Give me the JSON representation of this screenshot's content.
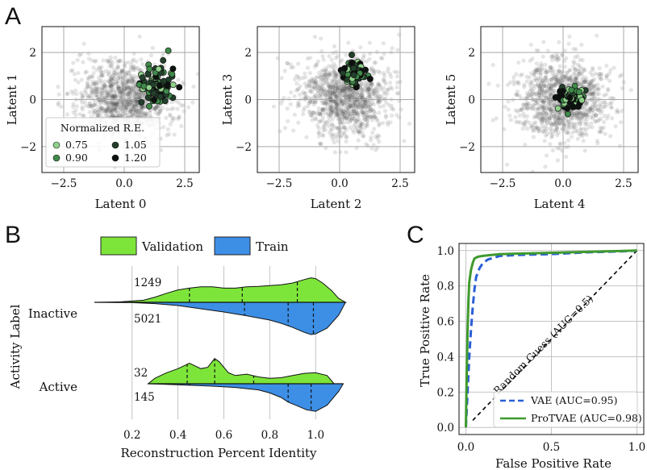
{
  "panels": {
    "a": "A",
    "b": "B",
    "c": "C"
  },
  "chart_data": [
    {
      "type": "scatter",
      "panel": "A",
      "plots": [
        {
          "xlabel": "Latent 0",
          "ylabel": "Latent 1"
        },
        {
          "xlabel": "Latent 2",
          "ylabel": "Latent 3"
        },
        {
          "xlabel": "Latent 4",
          "ylabel": "Latent 5"
        }
      ],
      "xlim": [
        -3.4,
        3.1
      ],
      "ylim": [
        -3.1,
        3.1
      ],
      "xticks": [
        -2.5,
        0.0,
        2.5
      ],
      "xtick_labels": [
        "−2.5",
        "0.0",
        "2.5"
      ],
      "yticks": [
        -2,
        0,
        2
      ],
      "ytick_labels": [
        "−2",
        "0",
        "2"
      ],
      "legend": {
        "title": "Normalized R.E.",
        "placement": "lower-left of first plot",
        "entries": [
          {
            "label": "0.75",
            "color": "#8fd18a"
          },
          {
            "label": "0.90",
            "color": "#3f8a4a"
          },
          {
            "label": "1.05",
            "color": "#23402c"
          },
          {
            "label": "1.20",
            "color": "#0d120f"
          }
        ]
      },
      "background_color": "#444444",
      "highlight_clusters": [
        {
          "plot": 0,
          "center": [
            1.3,
            0.6
          ],
          "spread": [
            0.55,
            0.65
          ]
        },
        {
          "plot": 1,
          "center": [
            0.6,
            1.1
          ],
          "spread": [
            0.4,
            0.45
          ]
        },
        {
          "plot": 2,
          "center": [
            0.3,
            0.05
          ],
          "spread": [
            0.45,
            0.35
          ]
        }
      ]
    },
    {
      "type": "violin",
      "panel": "B",
      "xlabel": "Reconstruction Percent Identity",
      "ylabel": "Activity Label",
      "xlim": [
        0.05,
        1.15
      ],
      "xticks": [
        0.2,
        0.4,
        0.6,
        0.8,
        1.0
      ],
      "xtick_labels": [
        "0.2",
        "0.4",
        "0.6",
        "0.8",
        "1.0"
      ],
      "categories": [
        "Inactive",
        "Active"
      ],
      "legend": [
        {
          "label": "Validation",
          "color": "#7de53a"
        },
        {
          "label": "Train",
          "color": "#3d8fe6"
        }
      ],
      "series": [
        {
          "name": "Validation",
          "counts": {
            "Inactive": "1249",
            "Active": "32"
          },
          "quartiles": {
            "Inactive": [
              0.45,
              0.68,
              0.92
            ],
            "Active": [
              0.44,
              0.56,
              0.73
            ]
          },
          "density": {
            "Inactive": {
              "x": [
                0.05,
                0.15,
                0.25,
                0.3,
                0.35,
                0.4,
                0.45,
                0.5,
                0.55,
                0.6,
                0.65,
                0.7,
                0.75,
                0.8,
                0.85,
                0.9,
                0.95,
                0.98,
                1.0,
                1.03,
                1.07,
                1.1,
                1.13
              ],
              "y": [
                0.0,
                0.02,
                0.08,
                0.2,
                0.35,
                0.48,
                0.55,
                0.6,
                0.6,
                0.55,
                0.55,
                0.6,
                0.62,
                0.65,
                0.68,
                0.75,
                0.88,
                0.95,
                0.92,
                0.75,
                0.45,
                0.15,
                0.0
              ]
            },
            "Active": {
              "x": [
                0.27,
                0.3,
                0.35,
                0.4,
                0.45,
                0.5,
                0.53,
                0.56,
                0.58,
                0.62,
                0.65,
                0.7,
                0.75,
                0.8,
                0.85,
                0.9,
                0.95,
                1.0,
                1.05,
                1.08
              ],
              "y": [
                0.0,
                0.2,
                0.4,
                0.55,
                0.75,
                0.55,
                0.6,
                0.92,
                0.8,
                0.4,
                0.3,
                0.35,
                0.25,
                0.2,
                0.22,
                0.3,
                0.38,
                0.4,
                0.3,
                0.0
              ]
            }
          }
        },
        {
          "name": "Train",
          "counts": {
            "Inactive": "5021",
            "Active": "145"
          },
          "quartiles": {
            "Inactive": [
              0.69,
              0.88,
              0.99
            ],
            "Active": [
              0.45,
              0.88,
              0.98
            ]
          },
          "density": {
            "Inactive": {
              "x": [
                0.05,
                0.2,
                0.3,
                0.4,
                0.5,
                0.6,
                0.7,
                0.8,
                0.85,
                0.9,
                0.95,
                0.98,
                1.0,
                1.05,
                1.1,
                1.13
              ],
              "y": [
                0.0,
                0.01,
                0.04,
                0.1,
                0.2,
                0.3,
                0.42,
                0.55,
                0.65,
                0.78,
                0.93,
                1.0,
                0.98,
                0.8,
                0.4,
                0.0
              ]
            },
            "Active": {
              "x": [
                0.27,
                0.35,
                0.45,
                0.55,
                0.65,
                0.75,
                0.8,
                0.85,
                0.88,
                0.92,
                0.96,
                1.0,
                1.05,
                1.1,
                1.12
              ],
              "y": [
                0.0,
                0.02,
                0.05,
                0.08,
                0.12,
                0.2,
                0.3,
                0.45,
                0.6,
                0.72,
                0.85,
                0.9,
                0.7,
                0.25,
                0.0
              ]
            }
          }
        }
      ]
    },
    {
      "type": "line",
      "panel": "C",
      "xlabel": "False Positive Rate",
      "ylabel": "True Positive Rate",
      "xlim": [
        -0.04,
        1.04
      ],
      "ylim": [
        -0.04,
        1.04
      ],
      "xticks": [
        0.0,
        0.5,
        1.0
      ],
      "xtick_labels": [
        "0.0",
        "0.5",
        "1.0"
      ],
      "yticks": [
        0.0,
        0.2,
        0.4,
        0.6,
        0.8,
        1.0
      ],
      "ytick_labels": [
        "0.0",
        "0.2",
        "0.4",
        "0.6",
        "0.8",
        "1.0"
      ],
      "annotation": "Random Guess (AUC=0.5)",
      "series": [
        {
          "name": "VAE (AUC=0.95)",
          "color": "#2a5fd6",
          "style": "dashed",
          "x": [
            0.0,
            0.01,
            0.02,
            0.03,
            0.04,
            0.05,
            0.06,
            0.08,
            0.1,
            0.13,
            0.2,
            0.3,
            0.5,
            0.7,
            0.9,
            1.0
          ],
          "y": [
            0.0,
            0.2,
            0.4,
            0.55,
            0.68,
            0.78,
            0.85,
            0.9,
            0.93,
            0.95,
            0.97,
            0.975,
            0.98,
            0.99,
            0.995,
            1.0
          ]
        },
        {
          "name": "ProTVAE (AUC=0.98)",
          "color": "#3e9a2e",
          "style": "solid",
          "x": [
            0.0,
            0.005,
            0.01,
            0.015,
            0.02,
            0.03,
            0.04,
            0.05,
            0.07,
            0.1,
            0.15,
            0.2,
            0.4,
            0.6,
            0.8,
            0.9,
            1.0
          ],
          "y": [
            0.0,
            0.3,
            0.55,
            0.72,
            0.82,
            0.89,
            0.93,
            0.955,
            0.965,
            0.97,
            0.975,
            0.98,
            0.985,
            0.99,
            0.995,
            0.997,
            1.0
          ]
        },
        {
          "name": "Random Guess",
          "color": "#000000",
          "style": "dashed",
          "x": [
            0.04,
            1.0
          ],
          "y": [
            0.04,
            1.0
          ]
        }
      ]
    }
  ]
}
